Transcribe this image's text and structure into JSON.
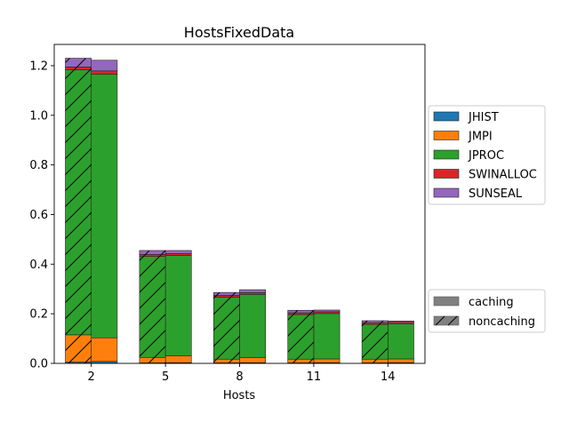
{
  "chart_data": {
    "type": "bar",
    "title": "HostsFixedData",
    "xlabel": "Hosts",
    "ylabel": "",
    "categories": [
      "2",
      "5",
      "8",
      "11",
      "14"
    ],
    "ylim": [
      0,
      1.2857
    ],
    "yticks": [
      "0.0",
      "0.2",
      "0.4",
      "0.6",
      "0.8",
      "1.0",
      "1.2"
    ],
    "stacked": true,
    "grid": false,
    "legend_position": "right",
    "components": [
      {
        "name": "JHIST",
        "color": "#1f77b4"
      },
      {
        "name": "JMPI",
        "color": "#ff7f0e"
      },
      {
        "name": "JPROC",
        "color": "#2ca02c"
      },
      {
        "name": "SWINALLOC",
        "color": "#d62728"
      },
      {
        "name": "SUNSEAL",
        "color": "#9467bd"
      }
    ],
    "groups": [
      {
        "name": "caching",
        "hatch": "none"
      },
      {
        "name": "noncaching",
        "hatch": "diagonal"
      }
    ],
    "series": [
      {
        "component": "JHIST",
        "group": "noncaching",
        "values": [
          0.005,
          0.002,
          0.002,
          0.002,
          0.002
        ]
      },
      {
        "component": "JMPI",
        "group": "noncaching",
        "values": [
          0.11,
          0.022,
          0.015,
          0.015,
          0.015
        ]
      },
      {
        "component": "JPROC",
        "group": "noncaching",
        "values": [
          1.068,
          0.407,
          0.25,
          0.18,
          0.14
        ]
      },
      {
        "component": "SWINALLOC",
        "group": "noncaching",
        "values": [
          0.012,
          0.008,
          0.007,
          0.007,
          0.007
        ]
      },
      {
        "component": "SUNSEAL",
        "group": "noncaching",
        "values": [
          0.035,
          0.016,
          0.012,
          0.01,
          0.008
        ]
      },
      {
        "component": "JHIST",
        "group": "caching",
        "values": [
          0.008,
          0.003,
          0.003,
          0.003,
          0.003
        ]
      },
      {
        "component": "JMPI",
        "group": "caching",
        "values": [
          0.095,
          0.027,
          0.02,
          0.015,
          0.015
        ]
      },
      {
        "component": "JPROC",
        "group": "caching",
        "values": [
          1.063,
          0.405,
          0.255,
          0.183,
          0.141
        ]
      },
      {
        "component": "SWINALLOC",
        "group": "caching",
        "values": [
          0.013,
          0.008,
          0.007,
          0.007,
          0.007
        ]
      },
      {
        "component": "SUNSEAL",
        "group": "caching",
        "values": [
          0.043,
          0.012,
          0.012,
          0.007,
          0.005
        ]
      }
    ]
  }
}
